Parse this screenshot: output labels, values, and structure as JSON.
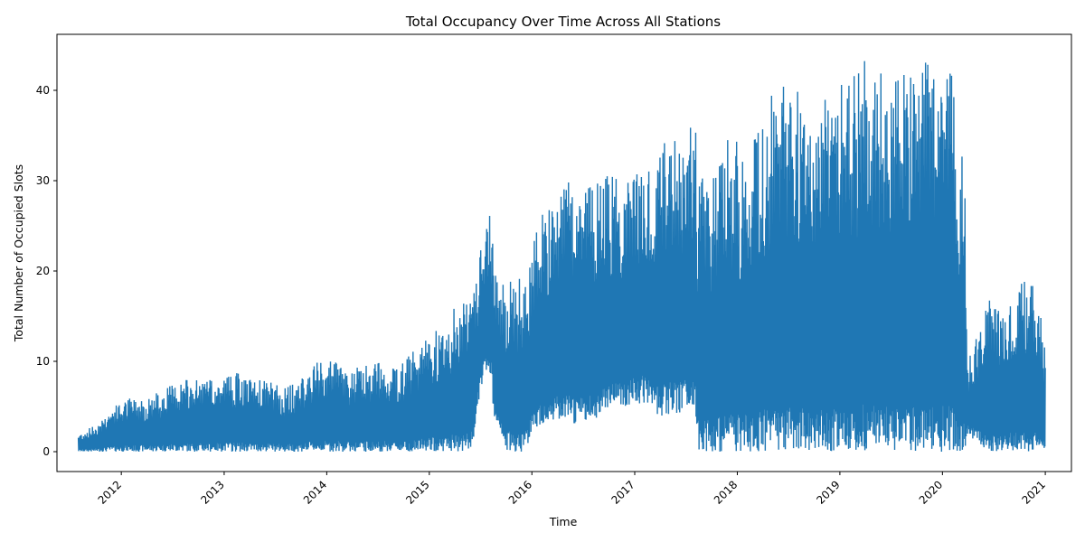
{
  "chart_data": {
    "type": "line",
    "title": "Total Occupancy Over Time Across All Stations",
    "xlabel": "Time",
    "ylabel": "Total Number of Occupied Slots",
    "xlim": [
      "2011-05-17",
      "2021-04-04"
    ],
    "ylim": [
      -2.2,
      46.2
    ],
    "x_ticks": [
      "2012",
      "2013",
      "2014",
      "2015",
      "2016",
      "2017",
      "2018",
      "2019",
      "2020",
      "2021"
    ],
    "y_ticks": [
      0,
      10,
      20,
      30,
      40
    ],
    "grid": false,
    "legend": "none",
    "series": [
      {
        "color": "#1f77b4",
        "x": [
          "2011-08-01",
          "2011-10-01",
          "2011-12-01",
          "2012-02-01",
          "2012-04-01",
          "2012-06-01",
          "2012-08-01",
          "2012-10-01",
          "2012-12-01",
          "2013-02-01",
          "2013-04-01",
          "2013-06-01",
          "2013-08-01",
          "2013-10-01",
          "2013-12-01",
          "2014-02-01",
          "2014-04-01",
          "2014-06-01",
          "2014-08-01",
          "2014-10-01",
          "2014-12-01",
          "2015-02-01",
          "2015-04-01",
          "2015-06-01",
          "2015-07-15",
          "2015-08-10",
          "2015-08-20",
          "2015-10-01",
          "2015-12-01",
          "2016-02-01",
          "2016-04-01",
          "2016-06-01",
          "2016-08-01",
          "2016-10-01",
          "2016-12-01",
          "2017-02-01",
          "2017-04-01",
          "2017-06-01",
          "2017-08-01",
          "2017-08-15",
          "2017-10-01",
          "2017-12-01",
          "2018-02-01",
          "2018-04-01",
          "2018-06-01",
          "2018-08-01",
          "2018-10-01",
          "2018-12-01",
          "2019-02-01",
          "2019-04-01",
          "2019-06-01",
          "2019-08-01",
          "2019-10-01",
          "2019-12-01",
          "2020-02-01",
          "2020-03-20",
          "2020-04-01",
          "2020-06-01",
          "2020-08-01",
          "2020-10-01",
          "2020-12-01",
          "2021-01-01"
        ],
        "max": [
          2,
          3,
          5,
          6,
          6,
          7,
          8,
          8,
          8,
          9,
          8,
          8,
          7,
          8,
          10,
          10,
          9,
          10,
          10,
          10,
          12,
          14,
          16,
          19,
          24,
          27,
          20,
          19,
          20,
          27,
          30,
          30,
          30,
          31,
          30,
          34,
          34,
          35,
          38,
          31,
          30,
          35,
          34,
          39,
          42,
          40,
          40,
          41,
          42,
          44,
          42,
          42,
          44,
          43,
          42,
          31,
          10,
          17,
          16,
          19,
          19,
          12
        ],
        "min": [
          0,
          0,
          0,
          0,
          0,
          0,
          0,
          0,
          0,
          0,
          0,
          0,
          0,
          0,
          0,
          0,
          0,
          0,
          0,
          0,
          0,
          0,
          0,
          0,
          9,
          8,
          3,
          0,
          0,
          3,
          3,
          3,
          3,
          5,
          5,
          5,
          4,
          4,
          5,
          0,
          0,
          0,
          0,
          0,
          0,
          0,
          0,
          0,
          0,
          0,
          0,
          0,
          0,
          0,
          0,
          0,
          2,
          0,
          0,
          0,
          0,
          0
        ]
      }
    ]
  }
}
